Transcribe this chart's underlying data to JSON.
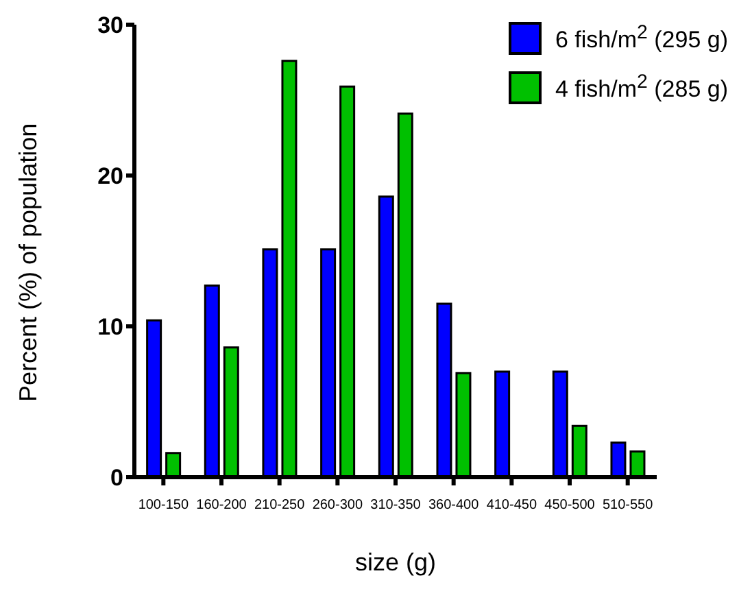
{
  "chart_data": {
    "type": "bar",
    "xlabel": "size (g)",
    "ylabel": "Percent (%) of population",
    "categories": [
      "100-150",
      "160-200",
      "210-250",
      "260-300",
      "310-350",
      "360-400",
      "410-450",
      "450-500",
      "510-550"
    ],
    "series": [
      {
        "name": "6 fish/m$^{2}$ (295 g)",
        "color": "#0000ff",
        "values": [
          10.4,
          12.7,
          15.1,
          15.1,
          18.6,
          11.5,
          7.0,
          7.0,
          2.3
        ]
      },
      {
        "name": "4 fish/m$^{2}$ (285 g)",
        "color": "#00c000",
        "values": [
          1.6,
          8.6,
          27.6,
          25.9,
          24.1,
          6.9,
          0,
          3.4,
          1.7
        ]
      }
    ],
    "ylim": [
      0,
      30
    ],
    "yticks": [
      0,
      10,
      20,
      30
    ],
    "grid": false,
    "legend": "top right"
  }
}
